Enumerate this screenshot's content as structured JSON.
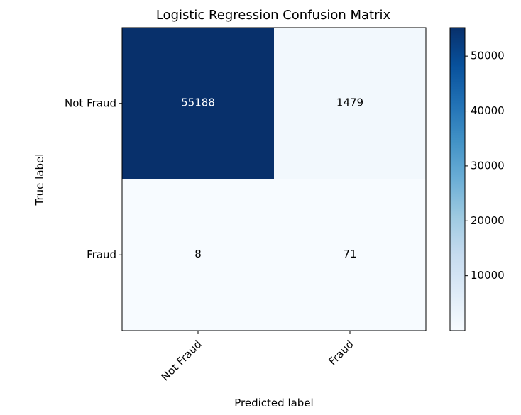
{
  "chart_data": {
    "type": "heatmap",
    "title": "Logistic Regression Confusion Matrix",
    "xlabel": "Predicted label",
    "ylabel": "True label",
    "x_categories": [
      "Not Fraud",
      "Fraud"
    ],
    "y_categories": [
      "Not Fraud",
      "Fraud"
    ],
    "values": [
      [
        55188,
        1479
      ],
      [
        8,
        71
      ]
    ],
    "colormap": "Blues",
    "colorbar": {
      "ticks": [
        10000,
        20000,
        30000,
        40000,
        50000
      ],
      "range": [
        8,
        55188
      ]
    },
    "colors": {
      "min": "#f7fbff",
      "max": "#08306b",
      "text_on_dark": "#ffffff",
      "text_on_light": "#000000"
    }
  }
}
